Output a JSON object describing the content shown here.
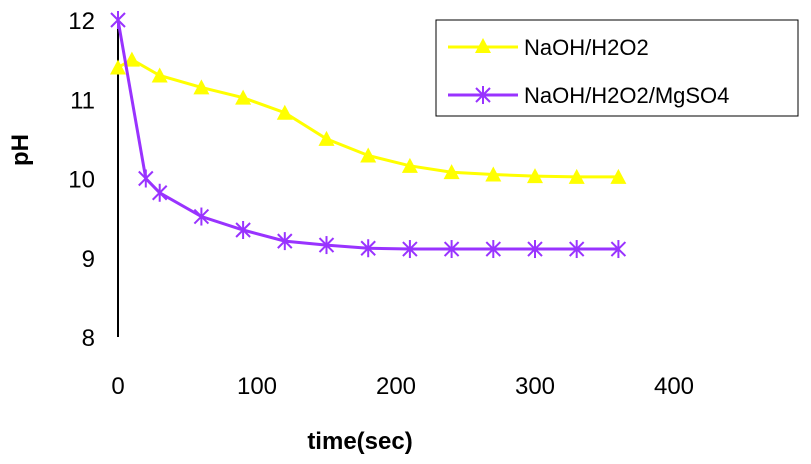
{
  "chart_data": {
    "type": "line",
    "xlabel": "time(sec)",
    "ylabel": "pH",
    "xlim": [
      0,
      400
    ],
    "ylim": [
      8,
      12
    ],
    "xticks": [
      "0",
      "100",
      "200",
      "300",
      "400"
    ],
    "yticks": [
      "8",
      "9",
      "10",
      "11",
      "12"
    ],
    "grid": false,
    "legend_position": "top-right",
    "series": [
      {
        "name": "NaOH/H2O2",
        "color": "#ffff00",
        "marker": "triangle",
        "x": [
          0,
          10,
          30,
          60,
          90,
          120,
          150,
          180,
          210,
          240,
          270,
          300,
          330,
          360
        ],
        "y": [
          11.4,
          11.5,
          11.3,
          11.15,
          11.02,
          10.83,
          10.5,
          10.29,
          10.16,
          10.08,
          10.05,
          10.03,
          10.02,
          10.02
        ]
      },
      {
        "name": "NaOH/H2O2/MgSO4",
        "color": "#9933ff",
        "marker": "asterisk",
        "x": [
          0,
          20,
          30,
          60,
          90,
          120,
          150,
          180,
          210,
          240,
          270,
          300,
          330,
          360
        ],
        "y": [
          12.0,
          10.0,
          9.82,
          9.52,
          9.35,
          9.21,
          9.16,
          9.12,
          9.11,
          9.11,
          9.11,
          9.11,
          9.11,
          9.11
        ]
      }
    ]
  }
}
